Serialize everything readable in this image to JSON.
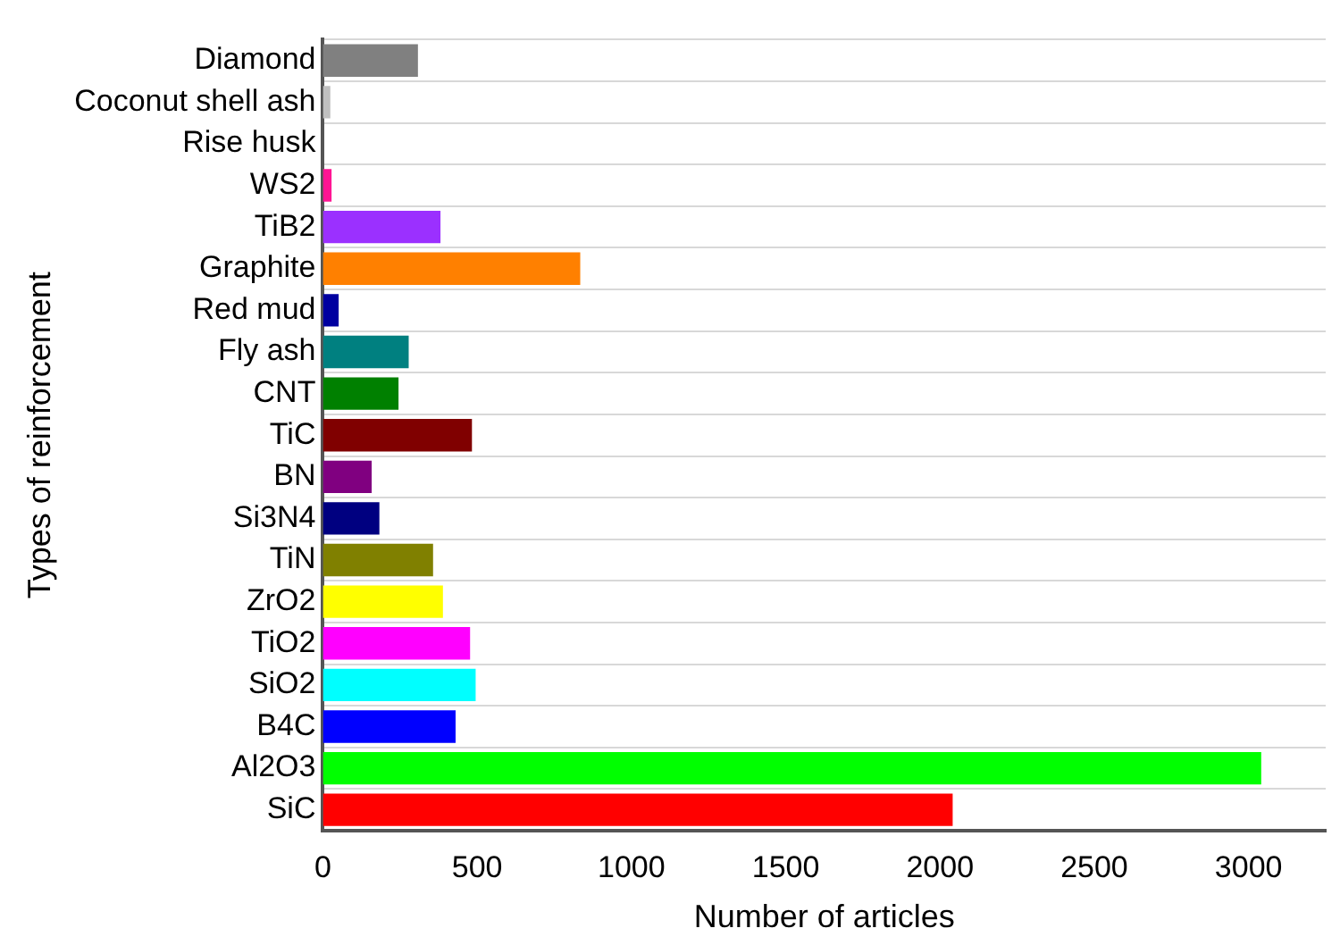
{
  "chart_data": {
    "type": "bar",
    "orientation": "horizontal",
    "xlabel": "Number of articles",
    "ylabel": "Types of reinforcement",
    "categories": [
      "Diamond",
      "Coconut shell ash",
      "Rise husk",
      "WS2",
      "TiB2",
      "Graphite",
      "Red mud",
      "Fly ash",
      "CNT",
      "TiC",
      "BN",
      "Si3N4",
      "TiN",
      "ZrO2",
      "TiO2",
      "SiO2",
      "B4C",
      "Al2O3",
      "SiC"
    ],
    "values": [
      308,
      24,
      null,
      28,
      381,
      834,
      51,
      278,
      245,
      483,
      158,
      183,
      357,
      389,
      477,
      495,
      430,
      3041,
      2041
    ],
    "colors": [
      "#808080",
      "#c0c0c0",
      "#d3d3d3",
      "#ff1493",
      "#9b30ff",
      "#ff8000",
      "#0000a0",
      "#008080",
      "#008000",
      "#800000",
      "#800080",
      "#000080",
      "#808000",
      "#ffff00",
      "#ff00ff",
      "#00ffff",
      "#0000ff",
      "#00ff00",
      "#ff0000"
    ],
    "xlim": [
      0,
      3250
    ],
    "xticks": [
      0,
      500,
      1000,
      1500,
      2000,
      2500,
      3000
    ],
    "grid": "y",
    "legend": false
  }
}
